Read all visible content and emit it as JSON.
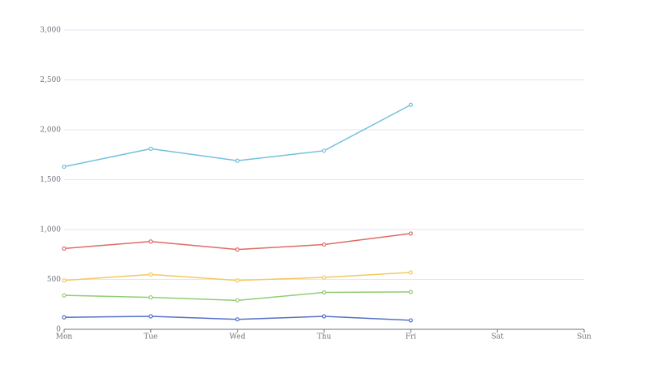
{
  "chart_data": {
    "type": "line",
    "categories": [
      "Mon",
      "Tue",
      "Wed",
      "Thu",
      "Fri",
      "Sat",
      "Sun"
    ],
    "series": [
      {
        "color": "#73c0de",
        "values": [
          1630,
          1810,
          1690,
          1790,
          2250,
          null,
          null
        ]
      },
      {
        "color": "#dd6b66",
        "values": [
          810,
          880,
          800,
          850,
          960,
          null,
          null
        ]
      },
      {
        "color": "#f3c95f",
        "values": [
          490,
          550,
          490,
          520,
          570,
          null,
          null
        ]
      },
      {
        "color": "#91cc75",
        "values": [
          340,
          320,
          290,
          370,
          375,
          null,
          null
        ]
      },
      {
        "color": "#5470c6",
        "values": [
          120,
          130,
          100,
          130,
          90,
          null,
          null
        ]
      }
    ],
    "ylim": [
      0,
      3000
    ],
    "yticks": [
      0,
      500,
      {
        "value": 1000,
        "label": "1,000"
      },
      {
        "value": 1500,
        "label": "1,500"
      },
      {
        "value": 2000,
        "label": "2,000"
      },
      {
        "value": 2500,
        "label": "2,500"
      },
      {
        "value": 3000,
        "label": "3,000"
      }
    ],
    "grid": true
  }
}
